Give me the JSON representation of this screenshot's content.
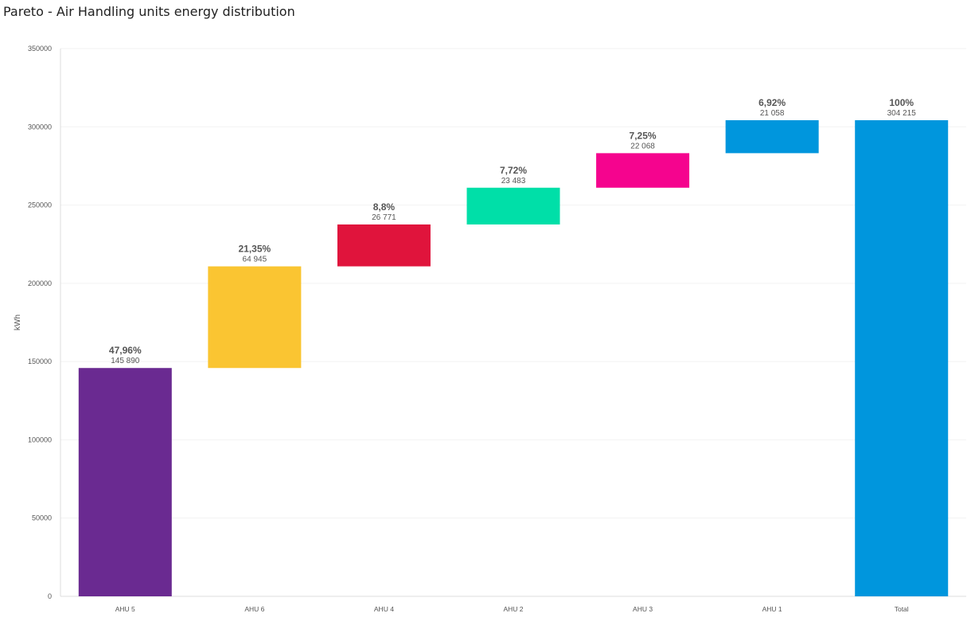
{
  "chart_data": {
    "type": "bar",
    "variant": "waterfall",
    "title": "Pareto - Air Handling units energy distribution",
    "xlabel": "",
    "ylabel": "kWh",
    "ylim": [
      0,
      350000
    ],
    "yticks": [
      0,
      50000,
      100000,
      150000,
      200000,
      250000,
      300000,
      350000
    ],
    "ytick_labels": [
      "0",
      "50000",
      "100000",
      "150000",
      "200000",
      "250000",
      "300000",
      "350000"
    ],
    "grid": true,
    "legend": "none",
    "categories": [
      "AHU 5",
      "AHU 6",
      "AHU 4",
      "AHU 2",
      "AHU 3",
      "AHU 1",
      "Total"
    ],
    "values": [
      145890,
      64945,
      26771,
      23483,
      22068,
      21058,
      304215
    ],
    "value_labels": [
      "145 890",
      "64 945",
      "26 771",
      "23 483",
      "22 068",
      "21 058",
      "304 215"
    ],
    "percent_labels": [
      "47,96%",
      "21,35%",
      "8,8%",
      "7,72%",
      "7,25%",
      "6,92%",
      "100%"
    ],
    "is_total": [
      false,
      false,
      false,
      false,
      false,
      false,
      true
    ],
    "colors": [
      "#6a2a91",
      "#fac532",
      "#e0143c",
      "#00dfa8",
      "#f5048e",
      "#0096dd",
      "#0096dd"
    ]
  }
}
